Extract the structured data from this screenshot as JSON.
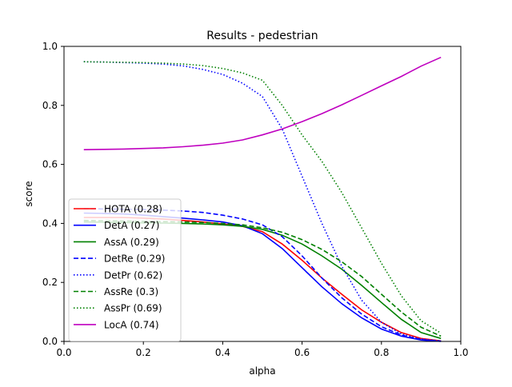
{
  "chart_data": {
    "type": "line",
    "title": "Results - pedestrian",
    "xlabel": "alpha",
    "ylabel": "score",
    "xlim": [
      0,
      1
    ],
    "ylim": [
      0,
      1
    ],
    "xticks": [
      "0.0",
      "0.2",
      "0.4",
      "0.6",
      "0.8",
      "1.0"
    ],
    "yticks": [
      "0.0",
      "0.2",
      "0.4",
      "0.6",
      "0.8",
      "1.0"
    ],
    "grid": false,
    "legend_position": "lower-left",
    "x": [
      0.05,
      0.1,
      0.15,
      0.2,
      0.25,
      0.3,
      0.35,
      0.4,
      0.45,
      0.5,
      0.55,
      0.6,
      0.65,
      0.7,
      0.75,
      0.8,
      0.85,
      0.9,
      0.95
    ],
    "series": [
      {
        "name": "HOTA (0.28)",
        "color": "#ff0000",
        "dash": "solid",
        "values": [
          0.42,
          0.42,
          0.42,
          0.418,
          0.415,
          0.41,
          0.405,
          0.398,
          0.39,
          0.372,
          0.33,
          0.275,
          0.215,
          0.16,
          0.107,
          0.065,
          0.03,
          0.01,
          0.002
        ]
      },
      {
        "name": "DetA (0.27)",
        "color": "#0000ff",
        "dash": "solid",
        "values": [
          0.435,
          0.434,
          0.432,
          0.428,
          0.423,
          0.418,
          0.412,
          0.405,
          0.392,
          0.365,
          0.315,
          0.25,
          0.185,
          0.128,
          0.08,
          0.042,
          0.018,
          0.005,
          0.0
        ]
      },
      {
        "name": "AssA (0.29)",
        "color": "#008000",
        "dash": "solid",
        "values": [
          0.405,
          0.404,
          0.403,
          0.402,
          0.401,
          0.4,
          0.398,
          0.395,
          0.39,
          0.38,
          0.36,
          0.33,
          0.29,
          0.245,
          0.19,
          0.132,
          0.075,
          0.03,
          0.01
        ]
      },
      {
        "name": "DetRe (0.29)",
        "color": "#0000ff",
        "dash": "dashed",
        "values": [
          0.45,
          0.449,
          0.448,
          0.447,
          0.445,
          0.442,
          0.437,
          0.428,
          0.415,
          0.395,
          0.355,
          0.29,
          0.215,
          0.148,
          0.093,
          0.05,
          0.022,
          0.006,
          0.001
        ]
      },
      {
        "name": "DetPr (0.62)",
        "color": "#0000ff",
        "dash": "dotted",
        "values": [
          0.948,
          0.947,
          0.945,
          0.943,
          0.94,
          0.934,
          0.922,
          0.905,
          0.875,
          0.83,
          0.72,
          0.56,
          0.4,
          0.255,
          0.14,
          0.065,
          0.025,
          0.008,
          0.002
        ]
      },
      {
        "name": "AssRe (0.3)",
        "color": "#008000",
        "dash": "dashed",
        "values": [
          0.41,
          0.409,
          0.408,
          0.407,
          0.406,
          0.405,
          0.403,
          0.4,
          0.395,
          0.385,
          0.37,
          0.345,
          0.312,
          0.27,
          0.22,
          0.16,
          0.1,
          0.048,
          0.018
        ]
      },
      {
        "name": "AssPr (0.69)",
        "color": "#008000",
        "dash": "dotted",
        "values": [
          0.948,
          0.947,
          0.946,
          0.945,
          0.943,
          0.94,
          0.935,
          0.925,
          0.91,
          0.885,
          0.8,
          0.7,
          0.61,
          0.505,
          0.385,
          0.265,
          0.155,
          0.07,
          0.028
        ]
      },
      {
        "name": "LocA (0.74)",
        "color": "#bf00bf",
        "dash": "solid",
        "values": [
          0.65,
          0.651,
          0.652,
          0.654,
          0.656,
          0.66,
          0.665,
          0.672,
          0.683,
          0.7,
          0.72,
          0.745,
          0.772,
          0.802,
          0.834,
          0.866,
          0.898,
          0.933,
          0.963
        ]
      }
    ]
  }
}
